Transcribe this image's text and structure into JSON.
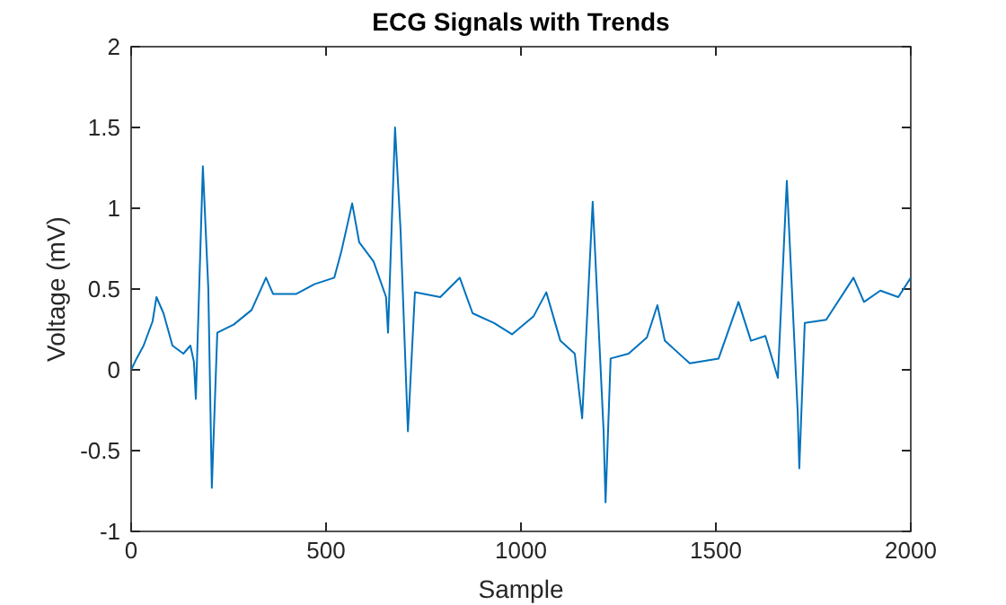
{
  "chart_data": {
    "type": "line",
    "title": "ECG Signals with Trends",
    "xlabel": "Sample",
    "ylabel": "Voltage (mV)",
    "x": [
      0,
      14,
      32,
      55,
      65,
      83,
      106,
      134,
      152,
      161,
      166,
      184,
      198,
      207,
      221,
      263,
      309,
      346,
      364,
      424,
      470,
      521,
      539,
      567,
      585,
      622,
      654,
      659,
      677,
      691,
      710,
      728,
      793,
      843,
      876,
      931,
      977,
      1032,
      1065,
      1101,
      1138,
      1157,
      1184,
      1212,
      1217,
      1230,
      1276,
      1323,
      1350,
      1369,
      1433,
      1507,
      1558,
      1590,
      1627,
      1659,
      1682,
      1710,
      1714,
      1728,
      1783,
      1853,
      1880,
      1922,
      1968,
      2000
    ],
    "series": [
      {
        "color": "#0072bd",
        "values": [
          0,
          0.07,
          0.15,
          0.3,
          0.45,
          0.35,
          0.15,
          0.1,
          0.15,
          0.05,
          -0.18,
          1.26,
          0.5,
          -0.73,
          0.23,
          0.28,
          0.37,
          0.57,
          0.47,
          0.47,
          0.53,
          0.57,
          0.73,
          1.03,
          0.79,
          0.67,
          0.45,
          0.23,
          1.5,
          0.87,
          -0.38,
          0.48,
          0.45,
          0.57,
          0.35,
          0.29,
          0.22,
          0.33,
          0.48,
          0.18,
          0.1,
          -0.3,
          1.04,
          -0.38,
          -0.82,
          0.07,
          0.1,
          0.2,
          0.4,
          0.18,
          0.04,
          0.07,
          0.42,
          0.18,
          0.21,
          -0.05,
          1.17,
          -0.27,
          -0.61,
          0.29,
          0.31,
          0.57,
          0.42,
          0.49,
          0.45,
          0.57
        ]
      }
    ],
    "xlim": [
      0,
      2000
    ],
    "xticks": [
      0,
      500,
      1000,
      1500,
      2000
    ],
    "ylim": [
      -1,
      2
    ],
    "yticks": [
      -1,
      -0.5,
      0,
      0.5,
      1,
      1.5,
      2
    ],
    "grid": false,
    "marker": "none",
    "line_style": "solid"
  }
}
